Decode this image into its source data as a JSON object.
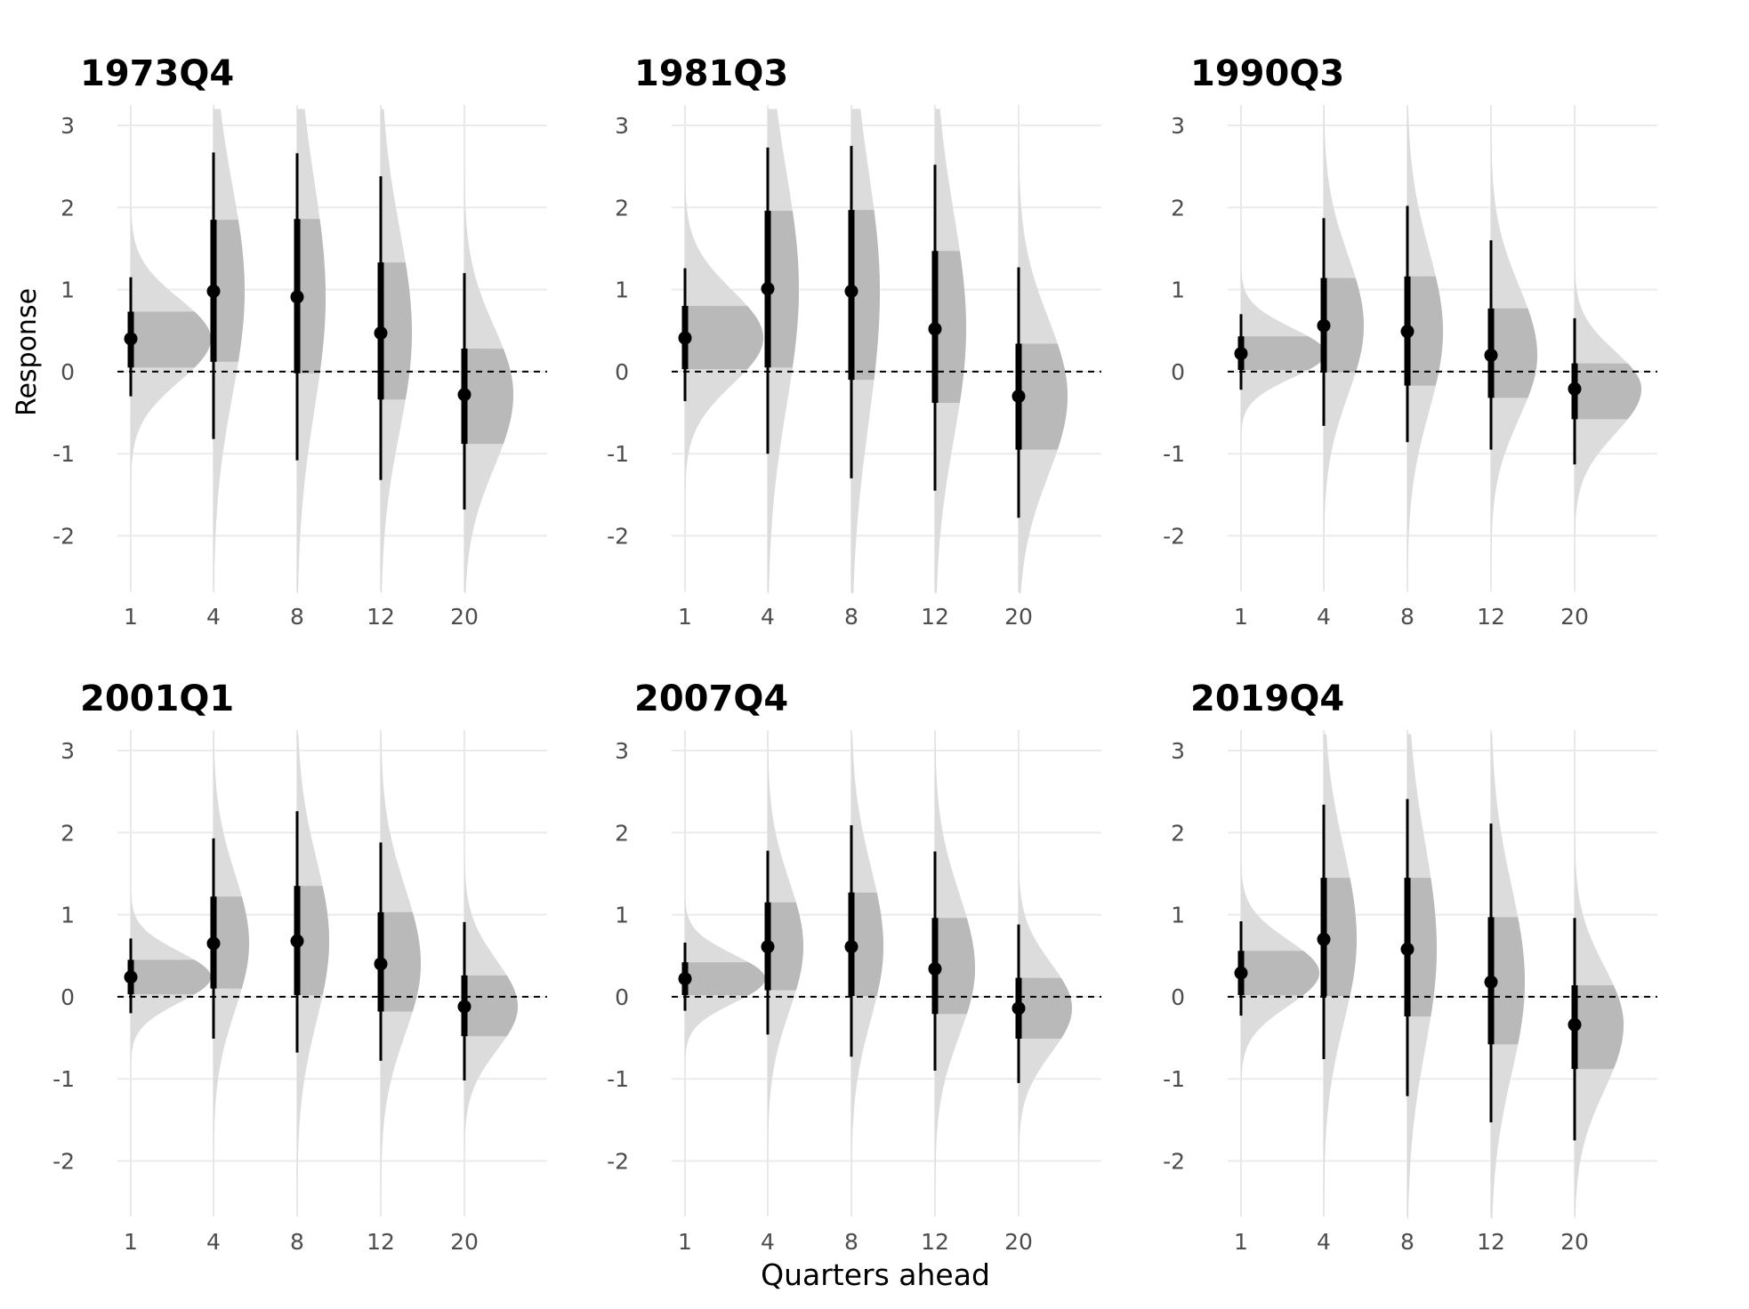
{
  "figure": {
    "ylabel": "Response",
    "xlabel": "Quarters ahead"
  },
  "colors": {
    "grid": "#ebebeb",
    "vline": "#e9e9e9",
    "outer_band": "#dcdcdc",
    "inner_band": "#b9b9b9",
    "point": "#000000",
    "zero_line": "#000000"
  },
  "chart_data": [
    {
      "type": "halfeye",
      "title": "1973Q4",
      "categories": [
        "1",
        "4",
        "8",
        "12",
        "20"
      ],
      "yticks": [
        "3",
        "2",
        "1",
        "0",
        "-1",
        "-2"
      ],
      "ylim": [
        -2.7,
        3.2
      ],
      "median": [
        0.4,
        0.98,
        0.91,
        0.47,
        -0.28
      ],
      "inner_interval": [
        [
          0.05,
          0.73
        ],
        [
          0.12,
          1.85
        ],
        [
          -0.02,
          1.86
        ],
        [
          -0.34,
          1.33
        ],
        [
          -0.88,
          0.28
        ]
      ],
      "outer_interval": [
        [
          -0.3,
          1.15
        ],
        [
          -0.82,
          2.67
        ],
        [
          -1.08,
          2.66
        ],
        [
          -1.32,
          2.38
        ],
        [
          -1.68,
          1.2
        ]
      ],
      "density_scale": [
        0.9,
        0.35,
        0.32,
        0.35,
        0.55
      ]
    },
    {
      "type": "halfeye",
      "title": "1981Q3",
      "categories": [
        "1",
        "4",
        "8",
        "12",
        "20"
      ],
      "yticks": [
        "3",
        "2",
        "1",
        "0",
        "-1",
        "-2"
      ],
      "ylim": [
        -2.7,
        3.2
      ],
      "median": [
        0.41,
        1.01,
        0.98,
        0.52,
        -0.3
      ],
      "inner_interval": [
        [
          0.03,
          0.8
        ],
        [
          0.05,
          1.96
        ],
        [
          -0.1,
          1.97
        ],
        [
          -0.38,
          1.47
        ],
        [
          -0.95,
          0.34
        ]
      ],
      "outer_interval": [
        [
          -0.36,
          1.26
        ],
        [
          -1.0,
          2.73
        ],
        [
          -1.3,
          2.75
        ],
        [
          -1.45,
          2.52
        ],
        [
          -1.78,
          1.27
        ]
      ],
      "density_scale": [
        0.88,
        0.35,
        0.32,
        0.35,
        0.55
      ]
    },
    {
      "type": "halfeye",
      "title": "1990Q3",
      "categories": [
        "1",
        "4",
        "8",
        "12",
        "20"
      ],
      "yticks": [
        "3",
        "2",
        "1",
        "0",
        "-1",
        "-2"
      ],
      "ylim": [
        -2.7,
        3.2
      ],
      "median": [
        0.22,
        0.56,
        0.49,
        0.2,
        -0.21
      ],
      "inner_interval": [
        [
          0.02,
          0.43
        ],
        [
          -0.01,
          1.14
        ],
        [
          -0.17,
          1.16
        ],
        [
          -0.32,
          0.77
        ],
        [
          -0.58,
          0.1
        ]
      ],
      "outer_interval": [
        [
          -0.22,
          0.7
        ],
        [
          -0.66,
          1.87
        ],
        [
          -0.86,
          2.02
        ],
        [
          -0.95,
          1.6
        ],
        [
          -1.13,
          0.65
        ]
      ],
      "density_scale": [
        0.95,
        0.45,
        0.4,
        0.52,
        0.75
      ]
    },
    {
      "type": "halfeye",
      "title": "2001Q1",
      "categories": [
        "1",
        "4",
        "8",
        "12",
        "20"
      ],
      "yticks": [
        "3",
        "2",
        "1",
        "0",
        "-1",
        "-2"
      ],
      "ylim": [
        -2.7,
        3.2
      ],
      "median": [
        0.24,
        0.65,
        0.68,
        0.4,
        -0.12
      ],
      "inner_interval": [
        [
          0.03,
          0.45
        ],
        [
          0.1,
          1.22
        ],
        [
          0.02,
          1.35
        ],
        [
          -0.18,
          1.03
        ],
        [
          -0.48,
          0.26
        ]
      ],
      "outer_interval": [
        [
          -0.2,
          0.71
        ],
        [
          -0.51,
          1.93
        ],
        [
          -0.68,
          2.26
        ],
        [
          -0.78,
          1.88
        ],
        [
          -1.02,
          0.91
        ]
      ],
      "density_scale": [
        0.9,
        0.4,
        0.36,
        0.45,
        0.6
      ]
    },
    {
      "type": "halfeye",
      "title": "2007Q4",
      "categories": [
        "1",
        "4",
        "8",
        "12",
        "20"
      ],
      "yticks": [
        "3",
        "2",
        "1",
        "0",
        "-1",
        "-2"
      ],
      "ylim": [
        -2.7,
        3.2
      ],
      "median": [
        0.22,
        0.61,
        0.61,
        0.34,
        -0.14
      ],
      "inner_interval": [
        [
          0.02,
          0.42
        ],
        [
          0.08,
          1.15
        ],
        [
          0.01,
          1.27
        ],
        [
          -0.21,
          0.96
        ],
        [
          -0.51,
          0.23
        ]
      ],
      "outer_interval": [
        [
          -0.17,
          0.66
        ],
        [
          -0.46,
          1.78
        ],
        [
          -0.73,
          2.09
        ],
        [
          -0.9,
          1.77
        ],
        [
          -1.05,
          0.88
        ]
      ],
      "density_scale": [
        0.9,
        0.4,
        0.36,
        0.45,
        0.6
      ]
    },
    {
      "type": "halfeye",
      "title": "2019Q4",
      "categories": [
        "1",
        "4",
        "8",
        "12",
        "20"
      ],
      "yticks": [
        "3",
        "2",
        "1",
        "0",
        "-1",
        "-2"
      ],
      "ylim": [
        -2.7,
        3.2
      ],
      "median": [
        0.29,
        0.7,
        0.58,
        0.18,
        -0.34
      ],
      "inner_interval": [
        [
          0.02,
          0.56
        ],
        [
          0.01,
          1.45
        ],
        [
          -0.24,
          1.45
        ],
        [
          -0.58,
          0.97
        ],
        [
          -0.88,
          0.14
        ]
      ],
      "outer_interval": [
        [
          -0.23,
          0.92
        ],
        [
          -0.76,
          2.34
        ],
        [
          -1.21,
          2.41
        ],
        [
          -1.53,
          2.11
        ],
        [
          -1.75,
          0.96
        ]
      ],
      "density_scale": [
        0.88,
        0.37,
        0.33,
        0.38,
        0.55
      ]
    }
  ]
}
